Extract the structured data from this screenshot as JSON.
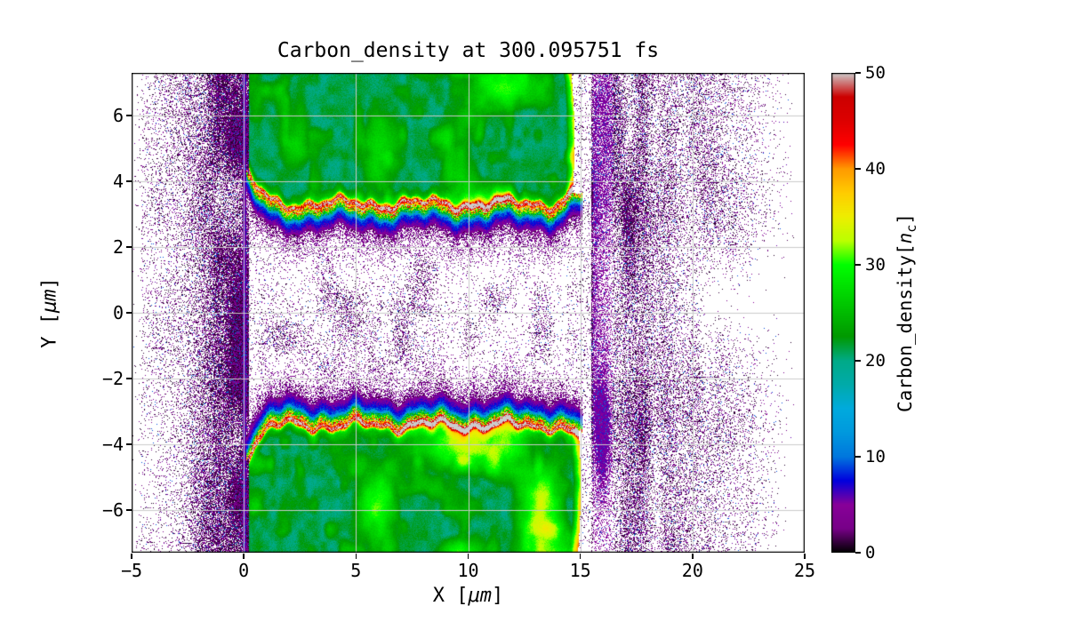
{
  "chart_data": {
    "type": "heatmap",
    "title": "Carbon_density at 300.095751 fs",
    "xlabel": {
      "prefix": "X [",
      "math": "μm",
      "suffix": "]"
    },
    "ylabel": {
      "prefix": "Y [",
      "math": "μm",
      "suffix": "]"
    },
    "xlim": [
      -5,
      25
    ],
    "ylim": [
      -7.3,
      7.3
    ],
    "xticks": [
      {
        "v": -5,
        "label": "−5"
      },
      {
        "v": 0,
        "label": "0"
      },
      {
        "v": 5,
        "label": "5"
      },
      {
        "v": 10,
        "label": "10"
      },
      {
        "v": 15,
        "label": "15"
      },
      {
        "v": 20,
        "label": "20"
      },
      {
        "v": 25,
        "label": "25"
      }
    ],
    "yticks": [
      {
        "v": 6,
        "label": "6"
      },
      {
        "v": 4,
        "label": "4"
      },
      {
        "v": 2,
        "label": "2"
      },
      {
        "v": 0,
        "label": "0"
      },
      {
        "v": -2,
        "label": "−2"
      },
      {
        "v": -4,
        "label": "−4"
      },
      {
        "v": -6,
        "label": "−6"
      }
    ],
    "grid": true,
    "grid_color": "#cbcbcb",
    "colorbar": {
      "label": {
        "prefix": "Carbon_density[",
        "var": "n",
        "sub": "c",
        "suffix": "]"
      },
      "min": 0,
      "max": 50,
      "ticks": [
        {
          "v": 0,
          "label": "0"
        },
        {
          "v": 10,
          "label": "10"
        },
        {
          "v": 20,
          "label": "20"
        },
        {
          "v": 30,
          "label": "30"
        },
        {
          "v": 40,
          "label": "40"
        },
        {
          "v": 50,
          "label": "50"
        }
      ],
      "colormap_name": "nipy_spectral-like",
      "stops": [
        [
          0.0,
          "#000000"
        ],
        [
          0.05,
          "#770088"
        ],
        [
          0.1,
          "#880099"
        ],
        [
          0.15,
          "#0000dd"
        ],
        [
          0.2,
          "#0077dd"
        ],
        [
          0.25,
          "#0099dd"
        ],
        [
          0.3,
          "#00aadd"
        ],
        [
          0.35,
          "#00aaaa"
        ],
        [
          0.4,
          "#00aa88"
        ],
        [
          0.45,
          "#009900"
        ],
        [
          0.5,
          "#00bb00"
        ],
        [
          0.55,
          "#00dd00"
        ],
        [
          0.6,
          "#00ff00"
        ],
        [
          0.65,
          "#bbff00"
        ],
        [
          0.7,
          "#eeee00"
        ],
        [
          0.75,
          "#ffcc00"
        ],
        [
          0.8,
          "#ff9900"
        ],
        [
          0.85,
          "#ff0000"
        ],
        [
          0.9,
          "#dd0000"
        ],
        [
          0.95,
          "#cc0000"
        ],
        [
          1.0,
          "#cccccc"
        ]
      ]
    },
    "features": {
      "description": "Two dense carbon slabs (≈20 nc, teal) spanning x ≈ 0–15 μm above y ≈ +3.2 μm and below y ≈ −3.3 μm, each with a hot compressed ridge (≈45–50 nc, red/yellow) along its inner surface that curls to |y| ≈ 4.2 μm at the left edge; bright yellow-green rims on the right slab edges near x ≈ 14.6–15 μm; low-density speckled blow-off plasma (black/purple, 0–8 nc) fills the central channel, the region left of x = 0 and a dense plume right of x ≈ 15.5 μm; white areas are zero density.",
      "slab_density": 20,
      "ridge_peak_density": 47,
      "upper_slab": {
        "x": [
          0.22,
          14.6
        ],
        "ridge_y": 3.2,
        "ridge_left_rise_to": 4.2
      },
      "lower_slab": {
        "x": [
          0.22,
          14.9
        ],
        "ridge_y": -3.3,
        "ridge_left_dip_to": -4.2
      },
      "left_plume_x": [
        -4.6,
        0.22
      ],
      "right_plume_x": [
        15.5,
        23.5
      ],
      "purple_line_x": 0.0
    }
  }
}
